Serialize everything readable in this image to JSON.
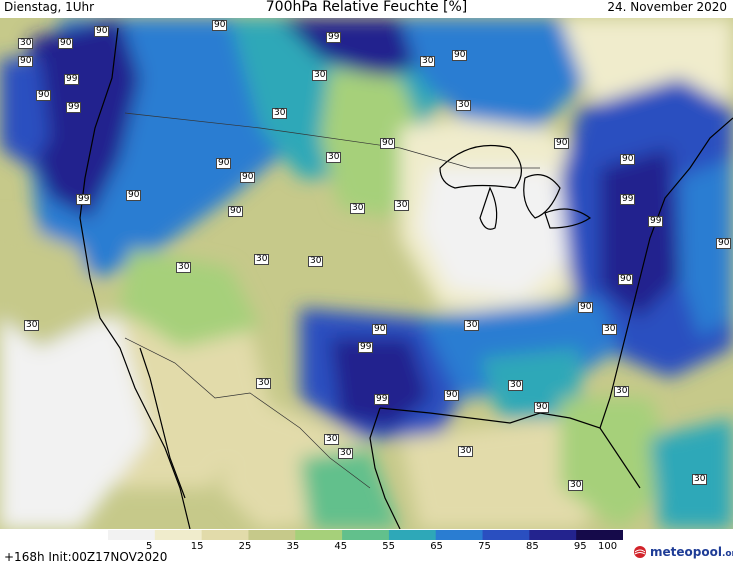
{
  "header": {
    "valid_day": "Dienstag, 1Uhr",
    "title": "700hPa Relative Feuchte [%]",
    "date": "24. November 2020"
  },
  "map": {
    "parameter": "Relative humidity at 700 hPa",
    "unit": "%",
    "contour_labels": [
      {
        "text": "30",
        "region": "pacific-northwest-ocean"
      },
      {
        "text": "90",
        "region": "pacific-northwest-ocean"
      },
      {
        "text": "90",
        "region": "pacific-northwest-ocean"
      },
      {
        "text": "90",
        "region": "washington-coast"
      },
      {
        "text": "99",
        "region": "washington-coast"
      },
      {
        "text": "90",
        "region": "oregon-coast-offshore"
      },
      {
        "text": "99",
        "region": "oregon"
      },
      {
        "text": "99",
        "region": "oregon-coast"
      },
      {
        "text": "90",
        "region": "idaho"
      },
      {
        "text": "90",
        "region": "british-columbia"
      },
      {
        "text": "99",
        "region": "alberta"
      },
      {
        "text": "30",
        "region": "saskatchewan"
      },
      {
        "text": "30",
        "region": "montana"
      },
      {
        "text": "90",
        "region": "montana"
      },
      {
        "text": "90",
        "region": "idaho-south"
      },
      {
        "text": "90",
        "region": "great-basin"
      },
      {
        "text": "30",
        "region": "wyoming"
      },
      {
        "text": "30",
        "region": "north-dakota"
      },
      {
        "text": "90",
        "region": "north-dakota-north"
      },
      {
        "text": "30",
        "region": "ontario"
      },
      {
        "text": "90",
        "region": "ontario-north"
      },
      {
        "text": "30",
        "region": "south-dakota"
      },
      {
        "text": "30",
        "region": "colorado"
      },
      {
        "text": "30",
        "region": "nebraska"
      },
      {
        "text": "30",
        "region": "nevada"
      },
      {
        "text": "30",
        "region": "california"
      },
      {
        "text": "90",
        "region": "kansas"
      },
      {
        "text": "99",
        "region": "oklahoma"
      },
      {
        "text": "99",
        "region": "texas-north"
      },
      {
        "text": "30",
        "region": "new-mexico"
      },
      {
        "text": "30",
        "region": "chihuahua"
      },
      {
        "text": "30",
        "region": "texas-west"
      },
      {
        "text": "30",
        "region": "texas-south"
      },
      {
        "text": "30",
        "region": "missouri"
      },
      {
        "text": "90",
        "region": "arkansas"
      },
      {
        "text": "30",
        "region": "mississippi"
      },
      {
        "text": "90",
        "region": "alabama"
      },
      {
        "text": "90",
        "region": "tennessee"
      },
      {
        "text": "30",
        "region": "georgia"
      },
      {
        "text": "90",
        "region": "carolinas"
      },
      {
        "text": "99",
        "region": "virginia"
      },
      {
        "text": "90",
        "region": "pennsylvania"
      },
      {
        "text": "90",
        "region": "new-england"
      },
      {
        "text": "99",
        "region": "atlantic-coast"
      },
      {
        "text": "90",
        "region": "atlantic"
      },
      {
        "text": "30",
        "region": "florida"
      },
      {
        "text": "30",
        "region": "gulf-of-mexico"
      },
      {
        "text": "30",
        "region": "caribbean"
      },
      {
        "text": "30",
        "region": "quebec"
      }
    ]
  },
  "colorbar": {
    "ticks": [
      "5",
      "15",
      "25",
      "35",
      "45",
      "55",
      "65",
      "75",
      "85",
      "95",
      "100"
    ],
    "colors": [
      "#f2f2f2",
      "#f0eccc",
      "#e2dbaa",
      "#c6c98a",
      "#a6d07a",
      "#62c08c",
      "#2ea8b8",
      "#2a7dd2",
      "#2a4fc0",
      "#23238e",
      "#150a4a"
    ]
  },
  "footer": {
    "run_info": "+168h Init:00Z17NOV2020",
    "logo_text": "meteopool",
    "logo_suffix": ".org"
  }
}
